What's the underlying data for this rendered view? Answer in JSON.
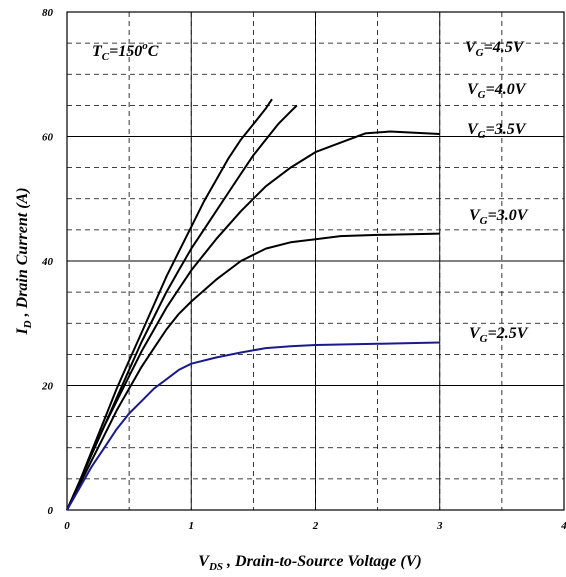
{
  "chart_data": {
    "type": "line",
    "xlim": [
      0,
      4
    ],
    "ylim": [
      0,
      80
    ],
    "x_ticks": [
      0,
      1,
      2,
      3,
      4
    ],
    "y_ticks": [
      0,
      20,
      40,
      60,
      80
    ],
    "grid": "dashed",
    "xlabel": {
      "main": "V",
      "sub": "DS",
      "rest": " , Drain-to-Source Voltage (V)"
    },
    "ylabel": {
      "main": "I",
      "sub": "D",
      "rest": " , Drain Current (A)"
    },
    "annotation": {
      "main": "T",
      "sub": "C",
      "rest": "=150",
      "sup": "o",
      "tail": "C"
    },
    "colors": {
      "curve": "#000000",
      "curve_low": "#1a1a8c",
      "grid": "#000000",
      "background": "#ffffff"
    },
    "series": [
      {
        "label": {
          "main": "V",
          "sub": "G",
          "rest": "=4.5V"
        },
        "color": "#000000",
        "x": [
          0,
          0.1,
          0.2,
          0.3,
          0.4,
          0.5,
          0.6,
          0.7,
          0.8,
          0.9,
          1.0,
          1.1,
          1.2,
          1.3,
          1.4,
          1.5,
          1.6,
          1.65
        ],
        "y": [
          0,
          4.5,
          9.5,
          14.5,
          19.5,
          24,
          28.5,
          33,
          37.5,
          41.5,
          45.5,
          49.5,
          53,
          56.5,
          59.5,
          62,
          64.5,
          66
        ]
      },
      {
        "label": {
          "main": "V",
          "sub": "G",
          "rest": "=4.0V"
        },
        "color": "#000000",
        "x": [
          0,
          0.1,
          0.2,
          0.3,
          0.4,
          0.5,
          0.6,
          0.7,
          0.8,
          0.9,
          1.0,
          1.1,
          1.2,
          1.3,
          1.4,
          1.5,
          1.6,
          1.7,
          1.8,
          1.85
        ],
        "y": [
          0,
          4.5,
          9,
          13.5,
          18,
          22.5,
          27,
          31,
          35,
          38.5,
          42,
          45,
          48,
          51,
          54,
          57,
          59.5,
          62,
          64,
          65
        ]
      },
      {
        "label": {
          "main": "V",
          "sub": "G",
          "rest": "=3.5V"
        },
        "color": "#000000",
        "x": [
          0,
          0.1,
          0.2,
          0.3,
          0.4,
          0.5,
          0.6,
          0.7,
          0.8,
          0.9,
          1.0,
          1.2,
          1.4,
          1.6,
          1.8,
          2.0,
          2.2,
          2.4,
          2.6,
          2.8,
          3.0
        ],
        "y": [
          0,
          4.5,
          9,
          13.5,
          17.5,
          21.5,
          25.5,
          29,
          32.5,
          35.5,
          38.5,
          43.5,
          48,
          52,
          55,
          57.5,
          59,
          60.5,
          60.8,
          60.6,
          60.4
        ]
      },
      {
        "label": {
          "main": "V",
          "sub": "G",
          "rest": "=3.0V"
        },
        "color": "#000000",
        "x": [
          0,
          0.1,
          0.2,
          0.3,
          0.4,
          0.5,
          0.6,
          0.7,
          0.8,
          0.9,
          1.0,
          1.2,
          1.4,
          1.6,
          1.8,
          2.0,
          2.2,
          2.5,
          3.0
        ],
        "y": [
          0,
          4,
          8,
          12,
          16,
          19.5,
          23,
          26,
          29,
          31.5,
          33.5,
          37,
          40,
          42,
          43,
          43.5,
          44,
          44.2,
          44.4
        ]
      },
      {
        "label": {
          "main": "V",
          "sub": "G",
          "rest": "=2.5V"
        },
        "color": "#1a1a8c",
        "x": [
          0,
          0.1,
          0.2,
          0.3,
          0.4,
          0.5,
          0.6,
          0.7,
          0.8,
          0.9,
          1.0,
          1.2,
          1.4,
          1.6,
          1.8,
          2.0,
          2.5,
          3.0
        ],
        "y": [
          0,
          3.5,
          7,
          10,
          13,
          15.5,
          17.5,
          19.5,
          21,
          22.5,
          23.5,
          24.5,
          25.3,
          26,
          26.3,
          26.5,
          26.7,
          26.9
        ]
      }
    ]
  }
}
